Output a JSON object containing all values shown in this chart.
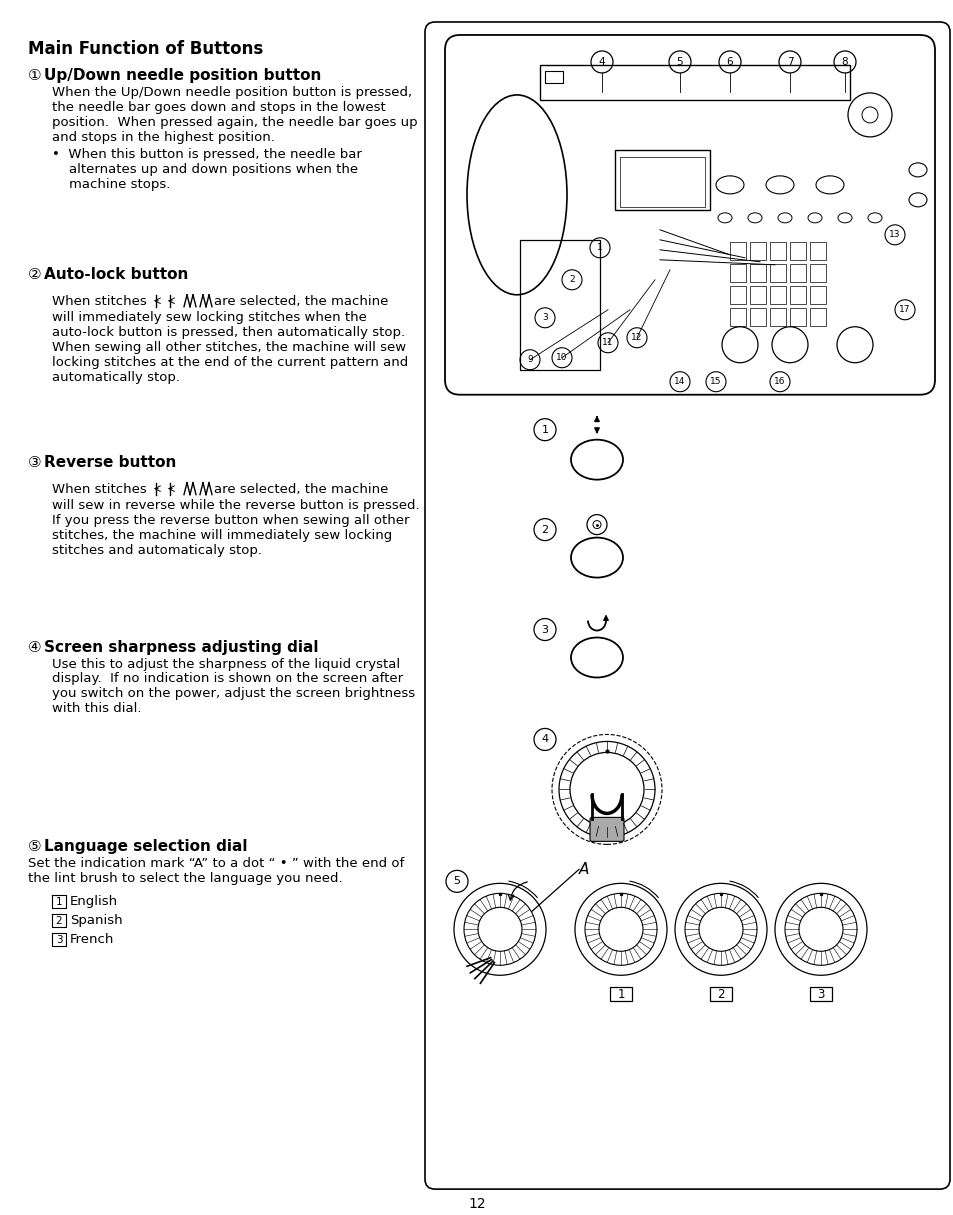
{
  "page_num": "12",
  "title": "Main Function of Buttons",
  "s1_num": "①",
  "s1_title": "Up/Down needle position button",
  "s1_b1": "When the Up/Down needle position button is pressed,",
  "s1_b2": "the needle bar goes down and stops in the lowest",
  "s1_b3": "position.  When pressed again, the needle bar goes up",
  "s1_b4": "and stops in the highest position.",
  "s1_bullet1": "•  When this button is pressed, the needle bar",
  "s1_bullet2": "    alternates up and down positions when the",
  "s1_bullet3": "    machine stops.",
  "s2_num": "②",
  "s2_title": "Auto-lock button",
  "s2_when": "When stitches ",
  "s2_are": "are selected, the machine",
  "s2_b2": "will immediately sew locking stitches when the",
  "s2_b3": "auto-lock button is pressed, then automatically stop.",
  "s2_b4": "When sewing all other stitches, the machine will sew",
  "s2_b5": "locking stitches at the end of the current pattern and",
  "s2_b6": "automatically stop.",
  "s3_num": "③",
  "s3_title": "Reverse button",
  "s3_when": "When stitches ",
  "s3_are": "are selected, the machine",
  "s3_b2": "will sew in reverse while the reverse button is pressed.",
  "s3_b3": "If you press the reverse button when sewing all other",
  "s3_b4": "stitches, the machine will immediately sew locking",
  "s3_b5": "stitches and automaticaly stop.",
  "s4_num": "④",
  "s4_title": "Screen sharpness adjusting dial",
  "s4_b1": "Use this to adjust the sharpness of the liquid crystal",
  "s4_b2": "display.  If no indication is shown on the screen after",
  "s4_b3": "you switch on the power, adjust the screen brightness",
  "s4_b4": "with this dial.",
  "s5_num": "⑤",
  "s5_title": "Language selection dial",
  "s5_b1": "Set the indication mark “A” to a dot “ • ” with the end of",
  "s5_b2": "the lint brush to select the language you need.",
  "s5_i1": "English",
  "s5_i2": "Spanish",
  "s5_i3": "French",
  "bg": "#ffffff",
  "fg": "#000000"
}
